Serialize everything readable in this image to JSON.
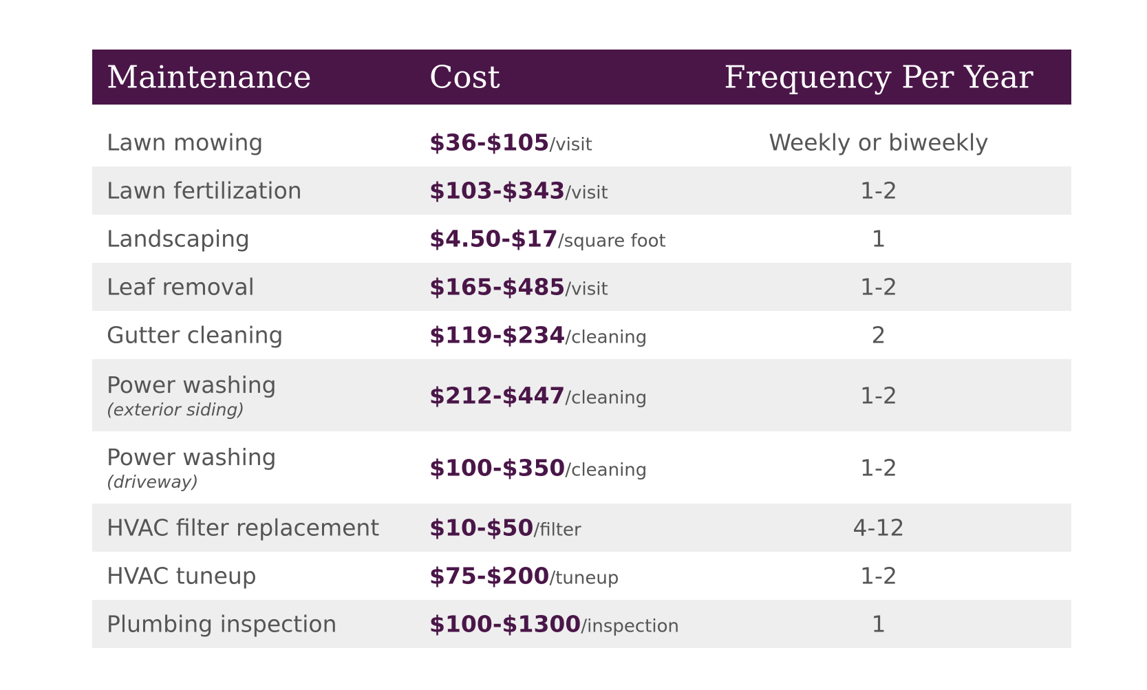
{
  "header": [
    "Maintenance",
    "Cost",
    "Frequency Per Year"
  ],
  "rows": [
    {
      "maintenance": "Lawn mowing",
      "cost": "$36-$105",
      "unit": "/visit",
      "frequency": "Weekly or biweekly"
    },
    {
      "maintenance": "Lawn fertilization",
      "cost": "$103-$343",
      "unit": "/visit",
      "frequency": "1-2"
    },
    {
      "maintenance": "Landscaping",
      "cost": "$4.50-$17",
      "unit": "/square foot",
      "frequency": "1"
    },
    {
      "maintenance": "Leaf removal",
      "cost": "$165-$485",
      "unit": "/visit",
      "frequency": "1-2"
    },
    {
      "maintenance": "Gutter cleaning",
      "cost": "$119-$234",
      "unit": "/cleaning",
      "frequency": "2"
    },
    {
      "maintenance": "Power washing",
      "note": "(exterior siding)",
      "cost": "$212-$447",
      "unit": "/cleaning",
      "frequency": "1-2"
    },
    {
      "maintenance": "Power washing",
      "note": "(driveway)",
      "cost": "$100-$350",
      "unit": "/cleaning",
      "frequency": "1-2"
    },
    {
      "maintenance": "HVAC filter replacement",
      "cost": "$10-$50",
      "unit": "/filter",
      "frequency": "4-12"
    },
    {
      "maintenance": "HVAC tuneup",
      "cost": "$75-$200",
      "unit": "/tuneup",
      "frequency": "1-2"
    },
    {
      "maintenance": "Plumbing inspection",
      "cost": "$100-$1300",
      "unit": "/inspection",
      "frequency": "1"
    }
  ]
}
